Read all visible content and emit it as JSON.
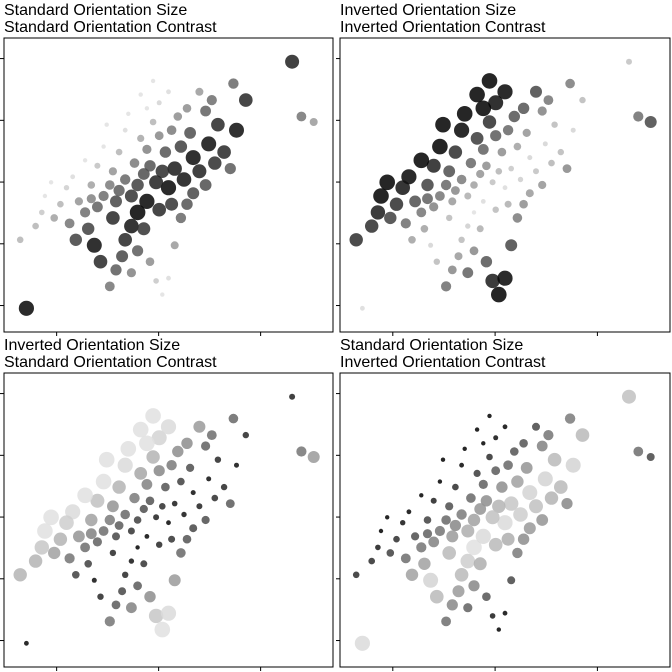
{
  "chart_data": [
    {
      "type": "scatter",
      "title_line1": "Standard Orientation Size",
      "title_line2": "Standard Orientation Contrast",
      "size_encoding": "standard",
      "contrast_encoding": "standard"
    },
    {
      "type": "scatter",
      "title_line1": "Inverted Orientation Size",
      "title_line2": "Inverted Orientation Contrast",
      "size_encoding": "inverted",
      "contrast_encoding": "inverted"
    },
    {
      "type": "scatter",
      "title_line1": "Inverted Orientation Size",
      "title_line2": "Standard Orientation Contrast",
      "size_encoding": "inverted",
      "contrast_encoding": "standard"
    },
    {
      "type": "scatter",
      "title_line1": "Standard Orientation Size",
      "title_line2": "Inverted Orientation Contrast",
      "size_encoding": "standard",
      "contrast_encoding": "inverted"
    }
  ],
  "points": [
    {
      "x": 0.02,
      "y": 0.3
    },
    {
      "x": 0.04,
      "y": 0.05
    },
    {
      "x": 0.9,
      "y": 0.95
    },
    {
      "x": 0.93,
      "y": 0.75
    },
    {
      "x": 0.97,
      "y": 0.73
    },
    {
      "x": 0.71,
      "y": 0.87
    },
    {
      "x": 0.75,
      "y": 0.81
    },
    {
      "x": 0.72,
      "y": 0.7
    },
    {
      "x": 0.64,
      "y": 0.81
    },
    {
      "x": 0.62,
      "y": 0.77
    },
    {
      "x": 0.66,
      "y": 0.72
    },
    {
      "x": 0.6,
      "y": 0.84
    },
    {
      "x": 0.56,
      "y": 0.78
    },
    {
      "x": 0.53,
      "y": 0.75
    },
    {
      "x": 0.54,
      "y": 0.64
    },
    {
      "x": 0.51,
      "y": 0.7
    },
    {
      "x": 0.49,
      "y": 0.62
    },
    {
      "x": 0.47,
      "y": 0.68
    },
    {
      "x": 0.45,
      "y": 0.73
    },
    {
      "x": 0.43,
      "y": 0.63
    },
    {
      "x": 0.41,
      "y": 0.67
    },
    {
      "x": 0.39,
      "y": 0.58
    },
    {
      "x": 0.37,
      "y": 0.76
    },
    {
      "x": 0.36,
      "y": 0.7
    },
    {
      "x": 0.34,
      "y": 0.62
    },
    {
      "x": 0.32,
      "y": 0.55
    },
    {
      "x": 0.3,
      "y": 0.72
    },
    {
      "x": 0.29,
      "y": 0.64
    },
    {
      "x": 0.27,
      "y": 0.57
    },
    {
      "x": 0.25,
      "y": 0.5
    },
    {
      "x": 0.23,
      "y": 0.59
    },
    {
      "x": 0.21,
      "y": 0.44
    },
    {
      "x": 0.19,
      "y": 0.53
    },
    {
      "x": 0.17,
      "y": 0.49
    },
    {
      "x": 0.15,
      "y": 0.43
    },
    {
      "x": 0.13,
      "y": 0.38
    },
    {
      "x": 0.12,
      "y": 0.51
    },
    {
      "x": 0.1,
      "y": 0.46
    },
    {
      "x": 0.09,
      "y": 0.4
    },
    {
      "x": 0.07,
      "y": 0.35
    },
    {
      "x": 0.6,
      "y": 0.55
    },
    {
      "x": 0.58,
      "y": 0.6
    },
    {
      "x": 0.55,
      "y": 0.52
    },
    {
      "x": 0.52,
      "y": 0.56
    },
    {
      "x": 0.5,
      "y": 0.49
    },
    {
      "x": 0.48,
      "y": 0.55
    },
    {
      "x": 0.46,
      "y": 0.51
    },
    {
      "x": 0.44,
      "y": 0.57
    },
    {
      "x": 0.42,
      "y": 0.54
    },
    {
      "x": 0.4,
      "y": 0.5
    },
    {
      "x": 0.38,
      "y": 0.46
    },
    {
      "x": 0.36,
      "y": 0.52
    },
    {
      "x": 0.34,
      "y": 0.48
    },
    {
      "x": 0.33,
      "y": 0.44
    },
    {
      "x": 0.31,
      "y": 0.5
    },
    {
      "x": 0.29,
      "y": 0.46
    },
    {
      "x": 0.27,
      "y": 0.42
    },
    {
      "x": 0.25,
      "y": 0.45
    },
    {
      "x": 0.23,
      "y": 0.4
    },
    {
      "x": 0.4,
      "y": 0.4
    },
    {
      "x": 0.38,
      "y": 0.35
    },
    {
      "x": 0.36,
      "y": 0.3
    },
    {
      "x": 0.35,
      "y": 0.24
    },
    {
      "x": 0.33,
      "y": 0.19
    },
    {
      "x": 0.31,
      "y": 0.13
    },
    {
      "x": 0.38,
      "y": 0.18
    },
    {
      "x": 0.4,
      "y": 0.26
    },
    {
      "x": 0.42,
      "y": 0.34
    },
    {
      "x": 0.44,
      "y": 0.22
    },
    {
      "x": 0.46,
      "y": 0.15
    },
    {
      "x": 0.48,
      "y": 0.1
    },
    {
      "x": 0.5,
      "y": 0.16
    },
    {
      "x": 0.52,
      "y": 0.28
    },
    {
      "x": 0.54,
      "y": 0.38
    },
    {
      "x": 0.56,
      "y": 0.43
    },
    {
      "x": 0.58,
      "y": 0.47
    },
    {
      "x": 0.62,
      "y": 0.5
    },
    {
      "x": 0.65,
      "y": 0.58
    },
    {
      "x": 0.68,
      "y": 0.62
    },
    {
      "x": 0.7,
      "y": 0.56
    },
    {
      "x": 0.24,
      "y": 0.34
    },
    {
      "x": 0.26,
      "y": 0.28
    },
    {
      "x": 0.28,
      "y": 0.22
    },
    {
      "x": 0.2,
      "y": 0.3
    },
    {
      "x": 0.18,
      "y": 0.36
    },
    {
      "x": 0.32,
      "y": 0.38
    },
    {
      "x": 0.43,
      "y": 0.44
    },
    {
      "x": 0.47,
      "y": 0.41
    },
    {
      "x": 0.51,
      "y": 0.43
    },
    {
      "x": 0.45,
      "y": 0.88
    },
    {
      "x": 0.47,
      "y": 0.8
    },
    {
      "x": 0.5,
      "y": 0.84
    },
    {
      "x": 0.43,
      "y": 0.78
    },
    {
      "x": 0.41,
      "y": 0.83
    },
    {
      "x": 0.57,
      "y": 0.69
    },
    {
      "x": 0.63,
      "y": 0.65
    }
  ]
}
